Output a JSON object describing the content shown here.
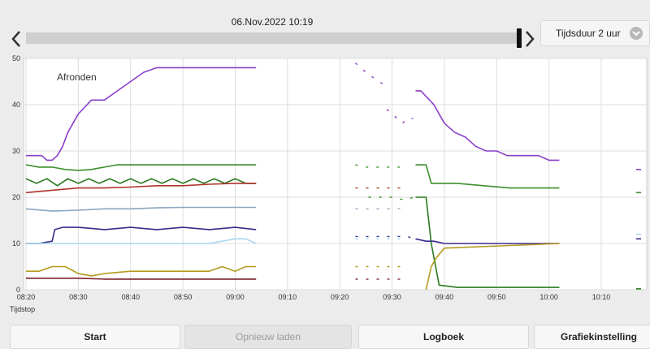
{
  "header": {
    "date_time": "06.Nov.2022 10:19",
    "duration_label": "Tijdsduur 2 uur"
  },
  "colors": {
    "purple": "#8a3fc9",
    "green": "#3d8f2b",
    "darkgreen": "#2a7a1e",
    "red": "#b0322a",
    "steel": "#8aa6c0",
    "navy": "#3a2a8a",
    "lightblue": "#a8d8ef",
    "olive": "#b59a1e",
    "maroon": "#7a1f2a"
  },
  "chart_data": {
    "type": "line",
    "annotation": "Afronden",
    "x_start_label": "Tijdstop",
    "ylim": [
      0,
      50
    ],
    "yticks": [
      "0",
      "10",
      "20",
      "30",
      "40",
      "50"
    ],
    "xticks": [
      "08:20",
      "08:30",
      "08:40",
      "08:50",
      "09:00",
      "09:10",
      "09:20",
      "09:30",
      "09:40",
      "09:50",
      "10:00",
      "10:10"
    ],
    "grid": true,
    "series": [
      {
        "color": "#8a3fc9",
        "x": [
          0,
          2,
          4,
          6,
          8,
          10,
          12,
          14,
          16,
          18,
          20,
          25,
          30,
          35,
          40,
          45,
          50,
          55,
          60,
          65,
          70,
          75,
          80,
          85,
          88
        ],
        "y": [
          29,
          29,
          29,
          29,
          28,
          28,
          29,
          31,
          34,
          36,
          38,
          41,
          41,
          43,
          45,
          47,
          48,
          48,
          48,
          48,
          48,
          48,
          48,
          48,
          48
        ]
      },
      {
        "color": "#3d8f2b",
        "x": [
          0,
          5,
          10,
          15,
          20,
          25,
          30,
          35,
          40,
          45,
          50,
          55,
          60,
          65,
          70,
          75,
          80,
          85,
          88
        ],
        "y": [
          27,
          26.5,
          26.5,
          26,
          25.8,
          26,
          26.5,
          27,
          27,
          27,
          27,
          27,
          27,
          27,
          27,
          27,
          27,
          27,
          27
        ]
      },
      {
        "color": "#2a7a1e",
        "x": [
          0,
          4,
          8,
          12,
          16,
          20,
          24,
          28,
          32,
          36,
          40,
          44,
          48,
          52,
          56,
          60,
          64,
          68,
          72,
          76,
          80,
          84,
          88
        ],
        "y": [
          24,
          23,
          24,
          22.5,
          24,
          23,
          24,
          23,
          24,
          23,
          24,
          23,
          24,
          23,
          24,
          23,
          24,
          23,
          24,
          23,
          24,
          23,
          23
        ]
      },
      {
        "color": "#b0322a",
        "x": [
          0,
          10,
          20,
          30,
          40,
          50,
          60,
          70,
          80,
          88
        ],
        "y": [
          21,
          21.5,
          22,
          22,
          22.2,
          22.5,
          22.5,
          22.8,
          23,
          23
        ]
      },
      {
        "color": "#8aa6c0",
        "x": [
          0,
          10,
          20,
          30,
          40,
          50,
          60,
          70,
          80,
          88
        ],
        "y": [
          17.5,
          17,
          17.2,
          17.5,
          17.5,
          17.7,
          17.8,
          17.8,
          17.8,
          17.8
        ]
      },
      {
        "color": "#3a2a8a",
        "x": [
          0,
          5,
          10,
          11,
          14,
          20,
          30,
          40,
          50,
          60,
          70,
          80,
          88
        ],
        "y": [
          10,
          10,
          10.5,
          13,
          13.5,
          13.5,
          13,
          13.5,
          13,
          13.5,
          13,
          13.5,
          13
        ]
      },
      {
        "color": "#a8d8ef",
        "x": [
          0,
          10,
          20,
          30,
          40,
          50,
          60,
          70,
          80,
          84,
          88
        ],
        "y": [
          10,
          10,
          10,
          10,
          10,
          10,
          10,
          10,
          11,
          11,
          10
        ]
      },
      {
        "color": "#b59a1e",
        "x": [
          0,
          5,
          10,
          15,
          20,
          25,
          30,
          40,
          50,
          60,
          70,
          75,
          80,
          84,
          88
        ],
        "y": [
          4,
          4,
          5,
          5,
          3.5,
          3,
          3.5,
          4,
          4,
          4,
          4,
          5,
          4,
          5,
          5
        ]
      },
      {
        "color": "#7a1f2a",
        "x": [
          0,
          10,
          20,
          30,
          40,
          50,
          60,
          70,
          80,
          88
        ],
        "y": [
          2.5,
          2.5,
          2.5,
          2.3,
          2.3,
          2.3,
          2.3,
          2.3,
          2.3,
          2.3
        ]
      },
      {
        "color": "#8a3fc9",
        "x": [
          149,
          151,
          156,
          160,
          164,
          168,
          172,
          176,
          180,
          184,
          188,
          192,
          196,
          200,
          204
        ],
        "y": [
          43,
          43,
          40,
          36,
          34,
          33,
          31,
          30,
          30,
          29,
          29,
          29,
          29,
          28,
          28
        ]
      },
      {
        "color": "#2a7a1e",
        "x": [
          149,
          153,
          155,
          158,
          165,
          175,
          185,
          195,
          204
        ],
        "y": [
          20,
          20,
          10,
          1,
          0.5,
          0.5,
          0.5,
          0.5,
          0.5
        ]
      },
      {
        "color": "#3d8f2b",
        "x": [
          149,
          153,
          155,
          165,
          175,
          185,
          195,
          204
        ],
        "y": [
          27,
          27,
          23,
          23,
          22.5,
          22,
          22,
          22
        ]
      },
      {
        "color": "#3a2a8a",
        "x": [
          149,
          153,
          156,
          160,
          170,
          180,
          190,
          200,
          204
        ],
        "y": [
          11,
          10.5,
          10.5,
          10,
          10,
          10,
          10,
          10,
          10
        ]
      },
      {
        "color": "#b59a1e",
        "x": [
          153,
          155,
          157,
          160,
          204
        ],
        "y": [
          0,
          5,
          7,
          9,
          10
        ]
      }
    ],
    "segments": [
      {
        "color": "#8a3fc9",
        "points": [
          [
            126,
            49
          ],
          [
            130,
            47
          ],
          [
            135,
            45
          ],
          [
            138,
            44
          ]
        ]
      },
      {
        "color": "#8a3fc9",
        "points": [
          [
            138,
            39
          ],
          [
            140,
            38
          ],
          [
            142,
            37
          ],
          [
            144,
            36
          ],
          [
            146,
            37
          ],
          [
            148,
            37
          ]
        ]
      },
      {
        "color": "#3d8f2b",
        "points": [
          [
            126,
            27
          ],
          [
            130,
            26.5
          ],
          [
            146,
            26.5
          ]
        ]
      },
      {
        "color": "#3d8f2b",
        "points": [
          [
            131,
            20
          ],
          [
            134,
            20
          ],
          [
            140,
            20
          ],
          [
            144,
            19.5
          ],
          [
            146,
            19.5
          ],
          [
            148,
            20
          ]
        ]
      },
      {
        "color": "#b0322a",
        "points": [
          [
            126,
            22
          ],
          [
            130,
            22
          ],
          [
            146,
            22
          ]
        ]
      },
      {
        "color": "#8aa6c0",
        "points": [
          [
            126,
            17.5
          ],
          [
            146,
            17.5
          ]
        ]
      },
      {
        "color": "#3a2a8a",
        "points": [
          [
            126,
            11.5
          ],
          [
            146,
            11.5
          ],
          [
            148,
            11
          ]
        ]
      },
      {
        "color": "#a8d8ef",
        "points": [
          [
            126,
            11
          ],
          [
            146,
            11
          ]
        ]
      },
      {
        "color": "#b59a1e",
        "points": [
          [
            126,
            5
          ],
          [
            146,
            5
          ]
        ]
      },
      {
        "color": "#7a1f2a",
        "points": [
          [
            126,
            2.3
          ],
          [
            146,
            2.3
          ]
        ]
      }
    ],
    "right_edge_marks": [
      {
        "color": "#8a3fc9",
        "y": 26
      },
      {
        "color": "#3d8f2b",
        "y": 21
      },
      {
        "color": "#a8d8ef",
        "y": 12
      },
      {
        "color": "#3a2a8a",
        "y": 11
      },
      {
        "color": "#2a7a1e",
        "y": 0.2
      }
    ],
    "x_range_minutes": [
      0,
      240
    ]
  },
  "toolbar": {
    "start_label": "Start",
    "reload_label": "Opnieuw laden",
    "logbook_label": "Logboek",
    "settings_label": "Grafiekinstelling"
  }
}
